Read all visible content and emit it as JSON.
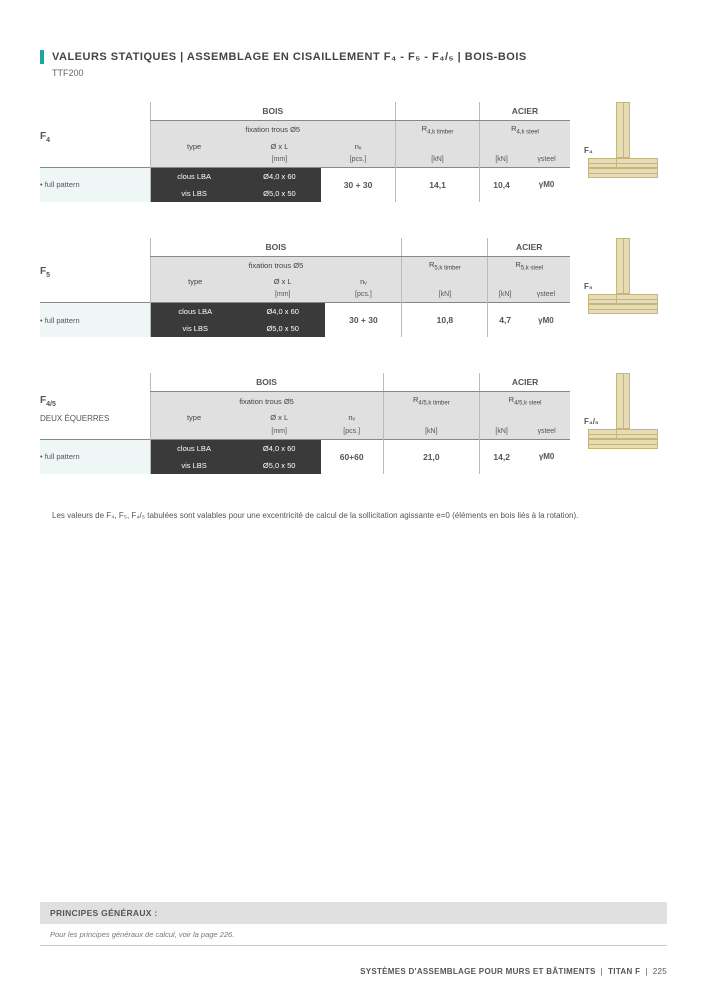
{
  "header": {
    "title": "VALEURS STATIQUES | ASSEMBLAGE EN CISAILLEMENT F₄ - F₅ - F₄/₅ | BOIS-BOIS",
    "subtitle": "TTF200"
  },
  "colors": {
    "accent": "#1ba6a0",
    "dark_cell": "#3a3a3a",
    "head_grey": "#e0e0e0",
    "pattern_bg": "#eef7f6",
    "wood": "#e8dcb5",
    "wood_border": "#c4b77c"
  },
  "tables": [
    {
      "f_label": "F",
      "f_sub": "4",
      "extra_label": "",
      "diag_label": "F₄",
      "bois_header": "BOIS",
      "acier_header": "ACIER",
      "fixation": "fixation trous Ø5",
      "r_timber": "R",
      "r_timber_sub": "4,k timber",
      "r_steel": "R",
      "r_steel_sub": "4,k steel",
      "col_type": "type",
      "col_dim": "Ø x L",
      "col_nv": "nᵥ",
      "unit_dim": "[mm]",
      "unit_nv": "[pcs.]",
      "unit_kn1": "[kN]",
      "unit_kn2": "[kN]",
      "unit_g": "γsteel",
      "pattern": "• full pattern",
      "rows": [
        {
          "type": "clous LBA",
          "dim": "Ø4,0 x 60"
        },
        {
          "type": "vis LBS",
          "dim": "Ø5,0 x 50"
        }
      ],
      "nv": "30 + 30",
      "rk_t": "14,1",
      "rk_s": "10,4",
      "gamma": "γM0"
    },
    {
      "f_label": "F",
      "f_sub": "5",
      "extra_label": "",
      "diag_label": "F₅",
      "bois_header": "BOIS",
      "acier_header": "ACIER",
      "fixation": "fixation trous Ø5",
      "r_timber": "R",
      "r_timber_sub": "5,k timber",
      "r_steel": "R",
      "r_steel_sub": "5,k steel",
      "col_type": "type",
      "col_dim": "Ø x L",
      "col_nv": "nᵥ",
      "unit_dim": "[mm]",
      "unit_nv": "[pcs.]",
      "unit_kn1": "[kN]",
      "unit_kn2": "[kN]",
      "unit_g": "γsteel",
      "pattern": "• full pattern",
      "rows": [
        {
          "type": "clous LBA",
          "dim": "Ø4,0 x 60"
        },
        {
          "type": "vis LBS",
          "dim": "Ø5,0 x 50"
        }
      ],
      "nv": "30 + 30",
      "rk_t": "10,8",
      "rk_s": "4,7",
      "gamma": "γM0"
    },
    {
      "f_label": "F",
      "f_sub": "4/5",
      "extra_label": "DEUX ÉQUERRES",
      "diag_label": "F₄/₅",
      "bois_header": "BOIS",
      "acier_header": "ACIER",
      "fixation": "fixation trous Ø5",
      "r_timber": "R",
      "r_timber_sub": "4/5,k timber",
      "r_steel": "R",
      "r_steel_sub": "4/5,k steel",
      "col_type": "type",
      "col_dim": "Ø x L",
      "col_nv": "nᵥ",
      "unit_dim": "[mm]",
      "unit_nv": "[pcs.]",
      "unit_kn1": "[kN]",
      "unit_kn2": "[kN]",
      "unit_g": "γsteel",
      "pattern": "• full pattern",
      "rows": [
        {
          "type": "clous LBA",
          "dim": "Ø4,0 x 60"
        },
        {
          "type": "vis LBS",
          "dim": "Ø5,0 x 50"
        }
      ],
      "nv": "60+60",
      "rk_t": "21,0",
      "rk_s": "14,2",
      "gamma": "γM0"
    }
  ],
  "note": "Les valeurs de F₄, F₅, F₄/₅ tabulées sont valables pour une excentricité de calcul de la sollicitation agissante e=0 (éléments en bois liés à la rotation).",
  "principles": {
    "head": "PRINCIPES GÉNÉRAUX :",
    "body": "Pour les principes généraux de calcul, voir la page 226."
  },
  "footer": {
    "left": "SYSTÈMES D'ASSEMBLAGE POUR MURS ET BÂTIMENTS",
    "mid": "TITAN F",
    "page": "225"
  }
}
